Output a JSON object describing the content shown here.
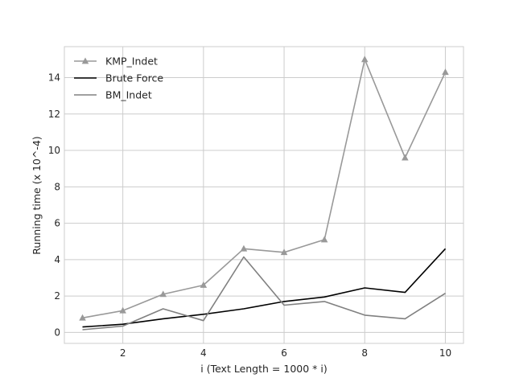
{
  "chart_data": {
    "type": "line",
    "xlabel": "i (Text Length = 1000 * i)",
    "ylabel": "Running time (x 10^-4)",
    "x": [
      1,
      2,
      3,
      4,
      5,
      6,
      7,
      8,
      9,
      10
    ],
    "xlim": [
      0.55,
      10.45
    ],
    "ylim": [
      -0.6,
      15.7
    ],
    "xticks": [
      2,
      4,
      6,
      8,
      10
    ],
    "yticks": [
      0,
      2,
      4,
      6,
      8,
      10,
      12,
      14
    ],
    "grid": true,
    "legend_position": "top-left",
    "series": [
      {
        "name": "KMP_Indet",
        "color": "#999999",
        "marker": "triangle",
        "values": [
          0.8,
          1.2,
          2.1,
          2.6,
          4.6,
          4.4,
          5.1,
          15.0,
          9.6,
          14.3
        ]
      },
      {
        "name": "Brute Force",
        "color": "#000000",
        "marker": "none",
        "values": [
          0.3,
          0.45,
          0.75,
          1.0,
          1.3,
          1.7,
          1.95,
          2.45,
          2.2,
          4.6
        ]
      },
      {
        "name": "BM_Indet",
        "color": "#808080",
        "marker": "none",
        "values": [
          0.15,
          0.35,
          1.3,
          0.65,
          4.15,
          1.5,
          1.7,
          0.95,
          0.75,
          2.15
        ]
      }
    ]
  }
}
